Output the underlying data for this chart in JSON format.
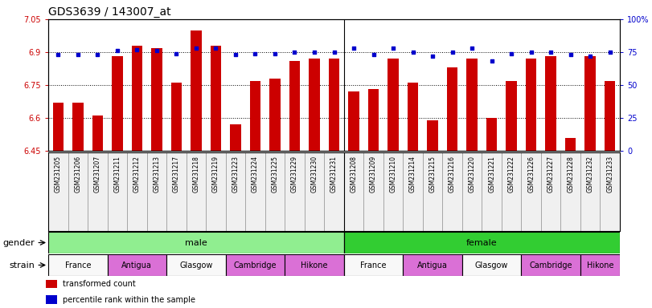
{
  "title": "GDS3639 / 143007_at",
  "samples": [
    "GSM231205",
    "GSM231206",
    "GSM231207",
    "GSM231211",
    "GSM231212",
    "GSM231213",
    "GSM231217",
    "GSM231218",
    "GSM231219",
    "GSM231223",
    "GSM231224",
    "GSM231225",
    "GSM231229",
    "GSM231230",
    "GSM231231",
    "GSM231208",
    "GSM231209",
    "GSM231210",
    "GSM231214",
    "GSM231215",
    "GSM231216",
    "GSM231220",
    "GSM231221",
    "GSM231222",
    "GSM231226",
    "GSM231227",
    "GSM231228",
    "GSM231232",
    "GSM231233"
  ],
  "bar_values": [
    6.67,
    6.67,
    6.61,
    6.88,
    6.93,
    6.92,
    6.76,
    7.0,
    6.93,
    6.57,
    6.77,
    6.78,
    6.86,
    6.87,
    6.87,
    6.72,
    6.73,
    6.87,
    6.76,
    6.59,
    6.83,
    6.87,
    6.6,
    6.77,
    6.87,
    6.88,
    6.51,
    6.88,
    6.77
  ],
  "percentile_values": [
    73,
    73,
    73,
    76,
    77,
    76,
    74,
    78,
    78,
    73,
    74,
    74,
    75,
    75,
    75,
    78,
    73,
    78,
    75,
    72,
    75,
    78,
    68,
    74,
    75,
    75,
    73,
    72,
    75
  ],
  "ylim_left": [
    6.45,
    7.05
  ],
  "ylim_right": [
    0,
    100
  ],
  "yticks_left": [
    6.45,
    6.6,
    6.75,
    6.9,
    7.05
  ],
  "yticks_right": [
    0,
    25,
    50,
    75,
    100
  ],
  "bar_color": "#cc0000",
  "dot_color": "#0000cc",
  "gender_groups": [
    {
      "label": "male",
      "start": 0,
      "end": 14,
      "color": "#90ee90"
    },
    {
      "label": "female",
      "start": 15,
      "end": 28,
      "color": "#32cd32"
    }
  ],
  "strain_white_labels": [
    "France",
    "Glasgow"
  ],
  "strain_groups": [
    {
      "label": "France",
      "start": 0,
      "end": 2
    },
    {
      "label": "Antigua",
      "start": 3,
      "end": 5
    },
    {
      "label": "Glasgow",
      "start": 6,
      "end": 8
    },
    {
      "label": "Cambridge",
      "start": 9,
      "end": 11
    },
    {
      "label": "Hikone",
      "start": 12,
      "end": 14
    },
    {
      "label": "France",
      "start": 15,
      "end": 17
    },
    {
      "label": "Antigua",
      "start": 18,
      "end": 20
    },
    {
      "label": "Glasgow",
      "start": 21,
      "end": 23
    },
    {
      "label": "Cambridge",
      "start": 24,
      "end": 26
    },
    {
      "label": "Hikone",
      "start": 27,
      "end": 28
    }
  ],
  "strain_color_white": "#f8f8f8",
  "strain_color_violet": "#da70d6",
  "legend_items": [
    {
      "label": "transformed count",
      "color": "#cc0000"
    },
    {
      "label": "percentile rank within the sample",
      "color": "#0000cc"
    }
  ],
  "background_color": "#ffffff",
  "title_fontsize": 10,
  "tick_fontsize": 7,
  "xlabel_fontsize": 5.5,
  "label_fontsize": 8,
  "annot_fontsize": 8
}
